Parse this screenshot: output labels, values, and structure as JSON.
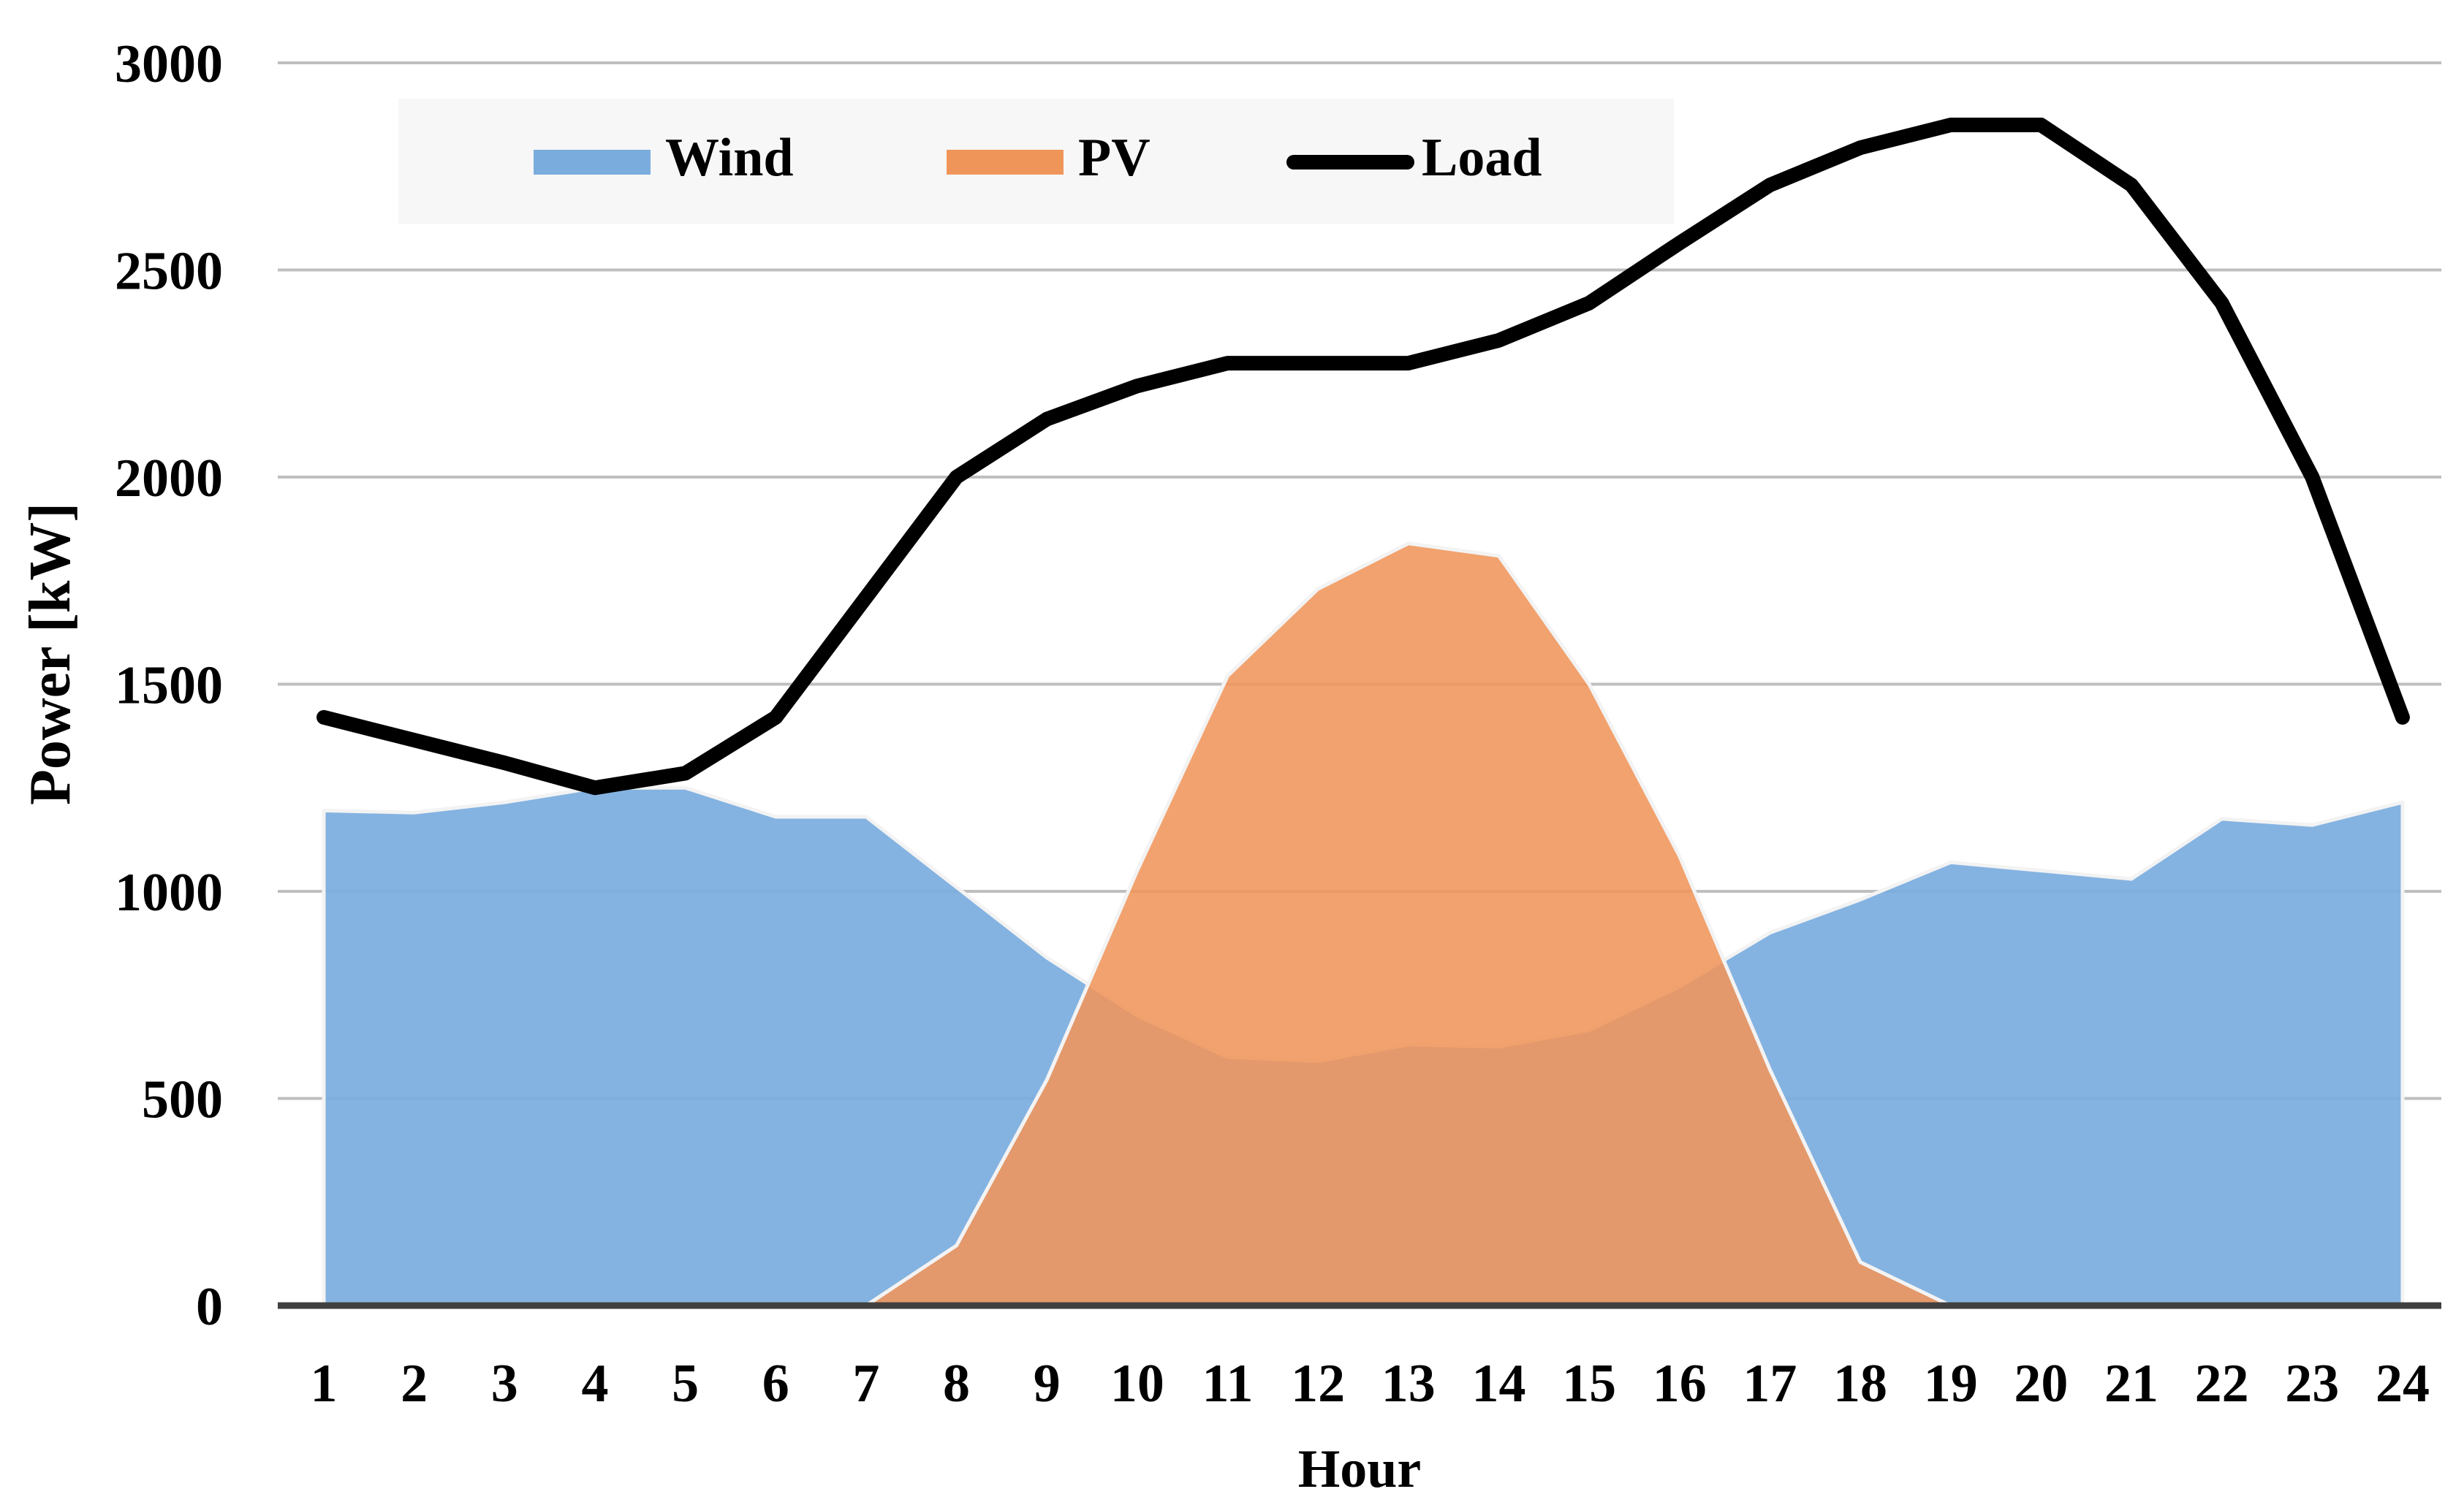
{
  "chart_data": {
    "type": "area",
    "title": "",
    "xlabel": "Hour",
    "ylabel": "Power [kW]",
    "ylim": [
      0,
      3000
    ],
    "yticks": [
      0,
      500,
      1000,
      1500,
      2000,
      2500,
      3000
    ],
    "grid": true,
    "legend_position": "top-left",
    "categories": [
      "1",
      "2",
      "3",
      "4",
      "5",
      "6",
      "7",
      "8",
      "9",
      "10",
      "11",
      "12",
      "13",
      "14",
      "15",
      "16",
      "17",
      "18",
      "19",
      "20",
      "21",
      "22",
      "23",
      "24"
    ],
    "series": [
      {
        "name": "Wind",
        "kind": "area",
        "color": "#7AADDE",
        "values": [
          1195,
          1190,
          1215,
          1250,
          1250,
          1180,
          1180,
          1010,
          840,
          700,
          600,
          590,
          630,
          625,
          665,
          770,
          900,
          980,
          1070,
          1050,
          1030,
          1175,
          1160,
          1215
        ]
      },
      {
        "name": "PV",
        "kind": "area",
        "color": "#F0955A",
        "values": [
          0,
          0,
          0,
          0,
          0,
          0,
          0,
          145,
          545,
          1050,
          1520,
          1730,
          1840,
          1810,
          1500,
          1085,
          570,
          105,
          0,
          0,
          0,
          0,
          0,
          0
        ]
      },
      {
        "name": "Load",
        "kind": "line",
        "color": "#000000",
        "values": [
          1420,
          1365,
          1310,
          1250,
          1285,
          1420,
          1710,
          2000,
          2140,
          2220,
          2275,
          2275,
          2275,
          2330,
          2420,
          2565,
          2705,
          2795,
          2850,
          2850,
          2705,
          2420,
          2000,
          1420
        ]
      }
    ]
  }
}
